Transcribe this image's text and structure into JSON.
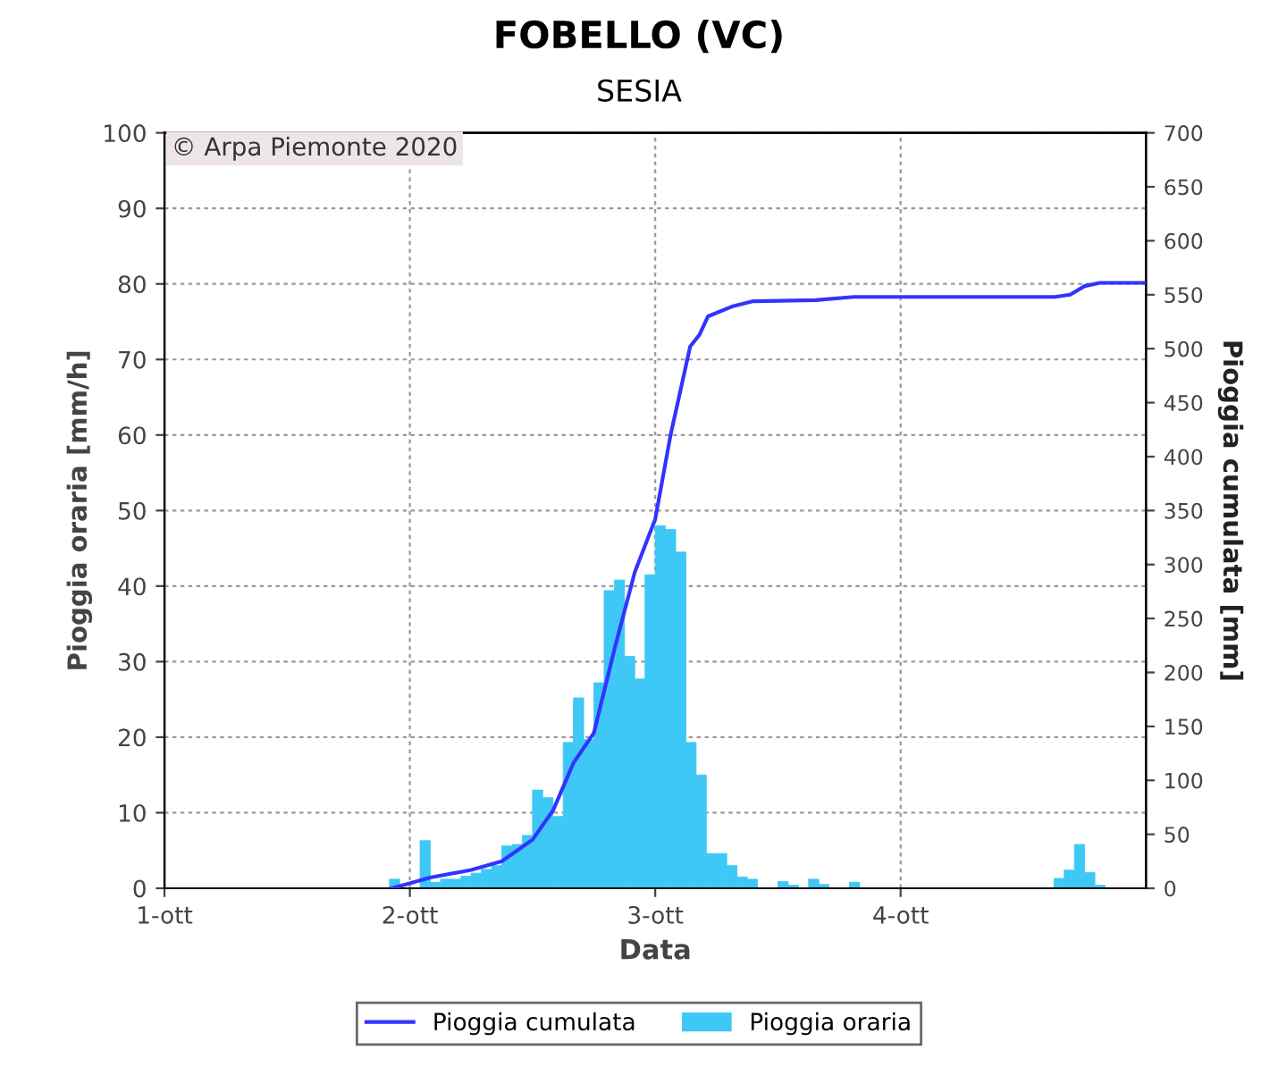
{
  "chart_data": {
    "type": "bar",
    "title": "FOBELLO (VC)",
    "subtitle": "SESIA",
    "xlabel": "Data",
    "ylabel": "Pioggia oraria [mm/h]",
    "y2label": "Pioggia cumulata [mm]",
    "annotations": [
      "© Arpa Piemonte 2020"
    ],
    "xlim": [
      "2020-10-01T00:00",
      "2020-10-05T00:00"
    ],
    "xticks": [
      {
        "value": "2020-10-01",
        "label": "1-ott"
      },
      {
        "value": "2020-10-02",
        "label": "2-ott"
      },
      {
        "value": "2020-10-03",
        "label": "3-ott"
      },
      {
        "value": "2020-10-04",
        "label": "4-ott"
      }
    ],
    "ylim": [
      0,
      100
    ],
    "yticks": [
      0,
      10,
      20,
      30,
      40,
      50,
      60,
      70,
      80,
      90,
      100
    ],
    "y2lim": [
      0,
      700
    ],
    "y2ticks": [
      0,
      50,
      100,
      150,
      200,
      250,
      300,
      350,
      400,
      450,
      500,
      550,
      600,
      650,
      700
    ],
    "grid": true,
    "legend": "bottom",
    "series": [
      {
        "name": "Pioggia cumulata",
        "type": "line",
        "axis": "y2",
        "color": "#3333ff",
        "x": [
          "2020-10-01T22:15",
          "2020-10-02T02:00",
          "2020-10-02T06:00",
          "2020-10-02T09:00",
          "2020-10-02T12:00",
          "2020-10-02T14:00",
          "2020-10-02T16:00",
          "2020-10-02T18:00",
          "2020-10-02T20:00",
          "2020-10-02T22:00",
          "2020-10-03T00:00",
          "2020-10-03T01:30",
          "2020-10-03T03:25",
          "2020-10-03T04:20",
          "2020-10-03T05:10",
          "2020-10-03T07:30",
          "2020-10-03T09:35",
          "2020-10-03T15:40",
          "2020-10-03T19:25",
          "2020-10-04T15:05",
          "2020-10-04T16:35",
          "2020-10-04T18:00",
          "2020-10-04T19:30",
          "2020-10-04T23:50"
        ],
        "values": [
          0,
          10,
          17,
          25,
          45,
          72,
          116,
          144,
          221,
          293,
          342,
          420,
          502,
          513,
          530,
          539,
          544,
          545,
          548,
          548,
          550,
          558,
          561,
          561
        ]
      },
      {
        "name": "Pioggia oraria",
        "color": "#3ec8f6",
        "x": [
          "2020-10-01T22:00",
          "2020-10-01T23:00",
          "2020-10-02T01:00",
          "2020-10-02T02:00",
          "2020-10-02T03:00",
          "2020-10-02T04:00",
          "2020-10-02T05:00",
          "2020-10-02T06:00",
          "2020-10-02T07:00",
          "2020-10-02T08:00",
          "2020-10-02T09:00",
          "2020-10-02T10:00",
          "2020-10-02T11:00",
          "2020-10-02T12:00",
          "2020-10-02T13:00",
          "2020-10-02T14:00",
          "2020-10-02T15:00",
          "2020-10-02T16:00",
          "2020-10-02T17:00",
          "2020-10-02T18:00",
          "2020-10-02T19:00",
          "2020-10-02T20:00",
          "2020-10-02T21:00",
          "2020-10-02T22:00",
          "2020-10-02T23:00",
          "2020-10-03T00:00",
          "2020-10-03T01:00",
          "2020-10-03T02:00",
          "2020-10-03T03:00",
          "2020-10-03T04:00",
          "2020-10-03T05:00",
          "2020-10-03T06:00",
          "2020-10-03T07:00",
          "2020-10-03T08:00",
          "2020-10-03T09:00",
          "2020-10-03T12:00",
          "2020-10-03T13:00",
          "2020-10-03T15:00",
          "2020-10-03T16:00",
          "2020-10-03T19:00",
          "2020-10-04T15:00",
          "2020-10-04T16:00",
          "2020-10-04T17:00",
          "2020-10-04T18:00",
          "2020-10-04T19:00"
        ],
        "values": [
          1.2,
          null,
          6.3,
          0.8,
          1.2,
          1.2,
          1.6,
          2.0,
          2.5,
          3.0,
          5.6,
          5.8,
          7.0,
          13.0,
          12.0,
          9.5,
          19.3,
          25.2,
          19.7,
          27.2,
          39.4,
          40.8,
          30.7,
          27.7,
          41.5,
          48.0,
          47.5,
          44.5,
          19.3,
          15.0,
          4.6,
          4.6,
          3.0,
          1.5,
          1.2,
          0.9,
          0.4,
          1.2,
          0.5,
          0.8,
          1.3,
          2.4,
          5.8,
          2.1,
          0.4
        ]
      }
    ]
  }
}
